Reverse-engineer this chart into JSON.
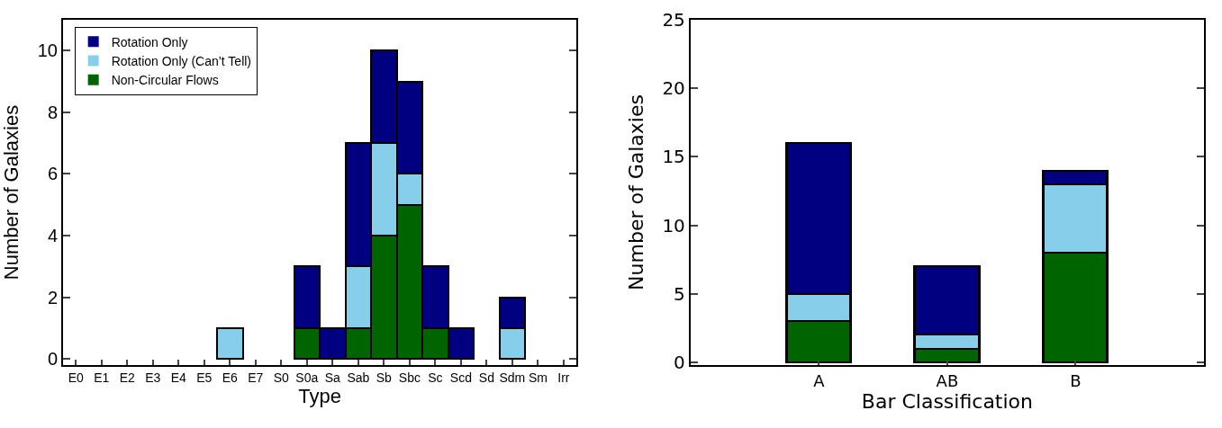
{
  "chart_data": [
    {
      "type": "bar",
      "stacked": true,
      "xlabel": "Type",
      "ylabel": "Number of Galaxies",
      "categories": [
        "E0",
        "E1",
        "E2",
        "E3",
        "E4",
        "E5",
        "E6",
        "E7",
        "S0",
        "S0a",
        "Sa",
        "Sab",
        "Sb",
        "Sbc",
        "Sc",
        "Scd",
        "Sd",
        "Sdm",
        "Sm",
        "Irr"
      ],
      "series": [
        {
          "name": "Non-Circular Flows",
          "color": "#006400",
          "values": [
            0,
            0,
            0,
            0,
            0,
            0,
            0,
            0,
            0,
            1,
            0,
            1,
            4,
            5,
            1,
            0,
            0,
            0,
            0,
            0
          ]
        },
        {
          "name": "Rotation Only (Can’t Tell)",
          "color": "#87ceeb",
          "values": [
            0,
            0,
            0,
            0,
            0,
            0,
            1,
            0,
            0,
            0,
            0,
            2,
            3,
            1,
            0,
            0,
            0,
            1,
            0,
            0
          ]
        },
        {
          "name": "Rotation Only",
          "color": "#000080",
          "values": [
            0,
            0,
            0,
            0,
            0,
            0,
            0,
            0,
            0,
            2,
            1,
            4,
            3,
            3,
            2,
            1,
            0,
            1,
            0,
            0
          ]
        }
      ],
      "ylim": [
        -0.2,
        11
      ],
      "yticks": [
        0,
        2,
        4,
        6,
        8,
        10
      ],
      "legend": "top left"
    },
    {
      "type": "bar",
      "stacked": true,
      "xlabel": "Bar Classification",
      "ylabel": "Number of Galaxies",
      "categories": [
        "A",
        "AB",
        "B"
      ],
      "series": [
        {
          "color": "#006400",
          "values": [
            3,
            1,
            8
          ]
        },
        {
          "color": "#87ceeb",
          "values": [
            2,
            1,
            5
          ]
        },
        {
          "color": "#000080",
          "values": [
            11,
            5,
            1
          ]
        }
      ],
      "ylim": [
        -0.2,
        25
      ],
      "yticks": [
        0,
        5,
        10,
        15,
        20,
        25
      ],
      "legend": false
    }
  ]
}
